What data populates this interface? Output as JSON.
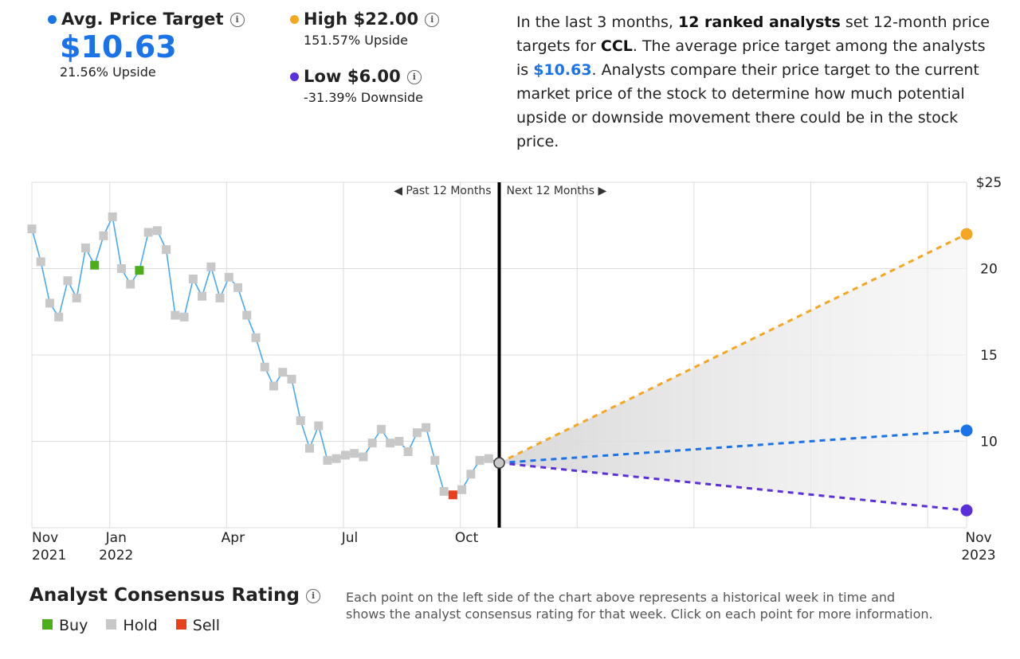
{
  "summary": {
    "avg": {
      "label": "Avg. Price Target",
      "value": "$10.63",
      "change": "21.56% Upside",
      "color": "#1a73e8"
    },
    "high": {
      "label": "High $22.00",
      "change": "151.57% Upside",
      "color": "#f5a623"
    },
    "low": {
      "label": "Low $6.00",
      "change": "-31.39% Downside",
      "color": "#5b2fd9"
    }
  },
  "description": {
    "p1": "In the last 3 months, ",
    "analysts": "12 ranked analysts",
    "p2": " set 12-month price targets for ",
    "ticker": "CCL",
    "p3": ". The average price target among the analysts is ",
    "avg": "$10.63",
    "p4": ". Analysts compare their price target to the current market price of the stock to determine how much potential upside or downside movement there could be in the stock price."
  },
  "chart_data": {
    "type": "line",
    "title": "",
    "divider_left": "Past 12 Months",
    "divider_right": "Next 12 Months",
    "x_ticks": [
      {
        "t": 0,
        "l1": "Nov",
        "l2": "2021"
      },
      {
        "t": 2,
        "l1": "Jan",
        "l2": "2022"
      },
      {
        "t": 5,
        "l1": "Apr",
        "l2": ""
      },
      {
        "t": 8,
        "l1": "Jul",
        "l2": ""
      },
      {
        "t": 11,
        "l1": "Oct",
        "l2": ""
      },
      {
        "t": 24,
        "l1": "Nov",
        "l2": "2023"
      }
    ],
    "x_gridlines": [
      2,
      5,
      8,
      11,
      14,
      17,
      20,
      23
    ],
    "y_ticks": [
      {
        "v": 25,
        "l": "$25"
      },
      {
        "v": 20,
        "l": "20"
      },
      {
        "v": 15,
        "l": "15"
      },
      {
        "v": 10,
        "l": "10"
      }
    ],
    "ylim": [
      5,
      25
    ],
    "xlim": [
      0,
      24
    ],
    "history": [
      {
        "t": 0.0,
        "v": 22.3,
        "r": "hold"
      },
      {
        "t": 0.23,
        "v": 20.4,
        "r": "hold"
      },
      {
        "t": 0.46,
        "v": 18.0,
        "r": "hold"
      },
      {
        "t": 0.69,
        "v": 17.2,
        "r": "hold"
      },
      {
        "t": 0.92,
        "v": 19.3,
        "r": "hold"
      },
      {
        "t": 1.15,
        "v": 18.3,
        "r": "hold"
      },
      {
        "t": 1.38,
        "v": 21.2,
        "r": "hold"
      },
      {
        "t": 1.61,
        "v": 20.2,
        "r": "buy"
      },
      {
        "t": 1.84,
        "v": 21.9,
        "r": "hold"
      },
      {
        "t": 2.07,
        "v": 23.0,
        "r": "hold"
      },
      {
        "t": 2.3,
        "v": 20.0,
        "r": "hold"
      },
      {
        "t": 2.53,
        "v": 19.1,
        "r": "hold"
      },
      {
        "t": 2.76,
        "v": 19.9,
        "r": "buy"
      },
      {
        "t": 2.99,
        "v": 22.1,
        "r": "hold"
      },
      {
        "t": 3.22,
        "v": 22.2,
        "r": "hold"
      },
      {
        "t": 3.45,
        "v": 21.1,
        "r": "hold"
      },
      {
        "t": 3.68,
        "v": 17.3,
        "r": "hold"
      },
      {
        "t": 3.91,
        "v": 17.2,
        "r": "hold"
      },
      {
        "t": 4.14,
        "v": 19.4,
        "r": "hold"
      },
      {
        "t": 4.37,
        "v": 18.4,
        "r": "hold"
      },
      {
        "t": 4.6,
        "v": 20.1,
        "r": "hold"
      },
      {
        "t": 4.83,
        "v": 18.3,
        "r": "hold"
      },
      {
        "t": 5.06,
        "v": 19.5,
        "r": "hold"
      },
      {
        "t": 5.29,
        "v": 18.9,
        "r": "hold"
      },
      {
        "t": 5.52,
        "v": 17.3,
        "r": "hold"
      },
      {
        "t": 5.75,
        "v": 16.0,
        "r": "hold"
      },
      {
        "t": 5.98,
        "v": 14.3,
        "r": "hold"
      },
      {
        "t": 6.21,
        "v": 13.2,
        "r": "hold"
      },
      {
        "t": 6.44,
        "v": 14.0,
        "r": "hold"
      },
      {
        "t": 6.67,
        "v": 13.6,
        "r": "hold"
      },
      {
        "t": 6.9,
        "v": 11.2,
        "r": "hold"
      },
      {
        "t": 7.13,
        "v": 9.6,
        "r": "hold"
      },
      {
        "t": 7.36,
        "v": 10.9,
        "r": "hold"
      },
      {
        "t": 7.59,
        "v": 8.9,
        "r": "hold"
      },
      {
        "t": 7.82,
        "v": 9.0,
        "r": "hold"
      },
      {
        "t": 8.05,
        "v": 9.2,
        "r": "hold"
      },
      {
        "t": 8.28,
        "v": 9.3,
        "r": "hold"
      },
      {
        "t": 8.51,
        "v": 9.1,
        "r": "hold"
      },
      {
        "t": 8.74,
        "v": 9.9,
        "r": "hold"
      },
      {
        "t": 8.97,
        "v": 10.7,
        "r": "hold"
      },
      {
        "t": 9.2,
        "v": 9.9,
        "r": "hold"
      },
      {
        "t": 9.43,
        "v": 10.0,
        "r": "hold"
      },
      {
        "t": 9.66,
        "v": 9.4,
        "r": "hold"
      },
      {
        "t": 9.89,
        "v": 10.5,
        "r": "hold"
      },
      {
        "t": 10.12,
        "v": 10.8,
        "r": "hold"
      },
      {
        "t": 10.35,
        "v": 8.9,
        "r": "hold"
      },
      {
        "t": 10.58,
        "v": 7.1,
        "r": "hold"
      },
      {
        "t": 10.81,
        "v": 6.9,
        "r": "sell"
      },
      {
        "t": 11.04,
        "v": 7.2,
        "r": "hold"
      },
      {
        "t": 11.27,
        "v": 8.1,
        "r": "hold"
      },
      {
        "t": 11.5,
        "v": 8.9,
        "r": "hold"
      },
      {
        "t": 11.73,
        "v": 9.0,
        "r": "hold"
      }
    ],
    "current": {
      "t": 12,
      "v": 8.75
    },
    "forecast": [
      {
        "name": "High",
        "target": 22.0,
        "color": "#f5a623"
      },
      {
        "name": "Average",
        "target": 10.63,
        "color": "#1a73e8"
      },
      {
        "name": "Low",
        "target": 6.0,
        "color": "#5b2fd9"
      }
    ],
    "colors": {
      "line": "#4aa9f0",
      "buy": "#4caf1a",
      "hold": "#c8c8c8",
      "sell": "#e8401c"
    }
  },
  "consensus": {
    "title": "Analyst Consensus Rating",
    "legend": [
      {
        "label": "Buy",
        "color": "#4caf1a"
      },
      {
        "label": "Hold",
        "color": "#c8c8c8"
      },
      {
        "label": "Sell",
        "color": "#e8401c"
      }
    ],
    "note": "Each point on the left side of the chart above represents a historical week in time and shows the analyst consensus rating for that week. Click on each point for more information."
  }
}
